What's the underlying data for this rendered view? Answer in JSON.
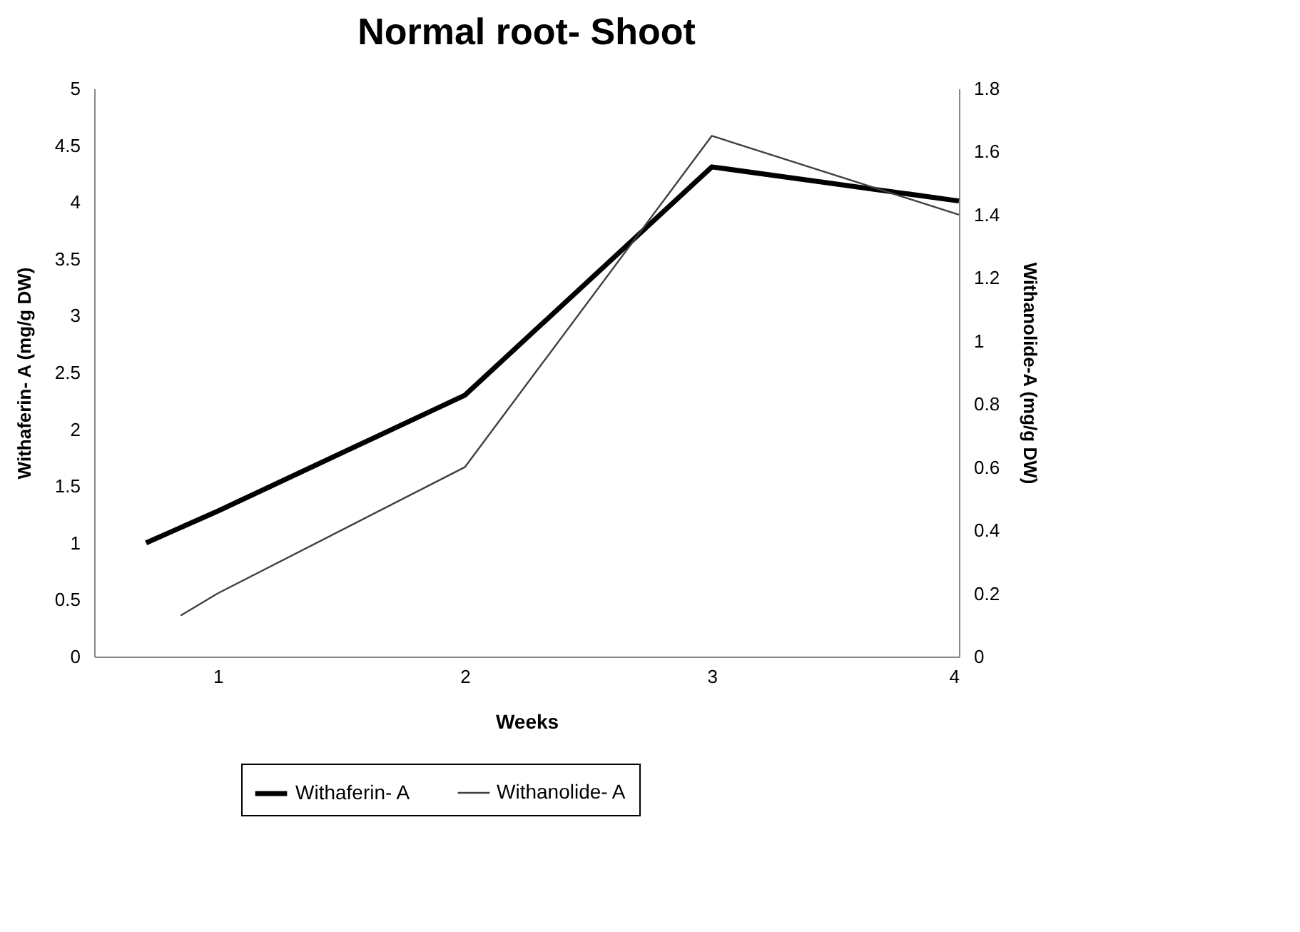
{
  "chart_data": {
    "type": "line",
    "title": "Normal root- Shoot",
    "xlabel": "Weeks",
    "ylabel": "Withaferin- A (mg/g DW)",
    "y2label": "Withanolide-A (mg/g DW)",
    "xlim": [
      0.5,
      4
    ],
    "xticks": [
      1,
      2,
      3,
      4
    ],
    "ylim": [
      0,
      5
    ],
    "yticks": [
      0,
      0.5,
      1,
      1.5,
      2,
      2.5,
      3,
      3.5,
      4,
      4.5,
      5
    ],
    "y2lim": [
      0,
      1.8
    ],
    "y2ticks": [
      0,
      0.2,
      0.4,
      0.6,
      0.8,
      1,
      1.2,
      1.4,
      1.6,
      1.8
    ],
    "grid": false,
    "legend": "bottom",
    "marker": "none",
    "series": [
      {
        "name": "Withaferin- A",
        "color": "#000000",
        "x": [
          0.71,
          1,
          2,
          3,
          4
        ],
        "values": [
          1.0,
          1.28,
          2.3,
          4.31,
          4.01
        ]
      },
      {
        "name": "Withanolide- A",
        "color": "#404040",
        "axis": "y2",
        "x": [
          0.85,
          1,
          2,
          3,
          4
        ],
        "values": [
          0.13,
          0.2,
          0.6,
          1.65,
          1.4
        ]
      }
    ]
  }
}
